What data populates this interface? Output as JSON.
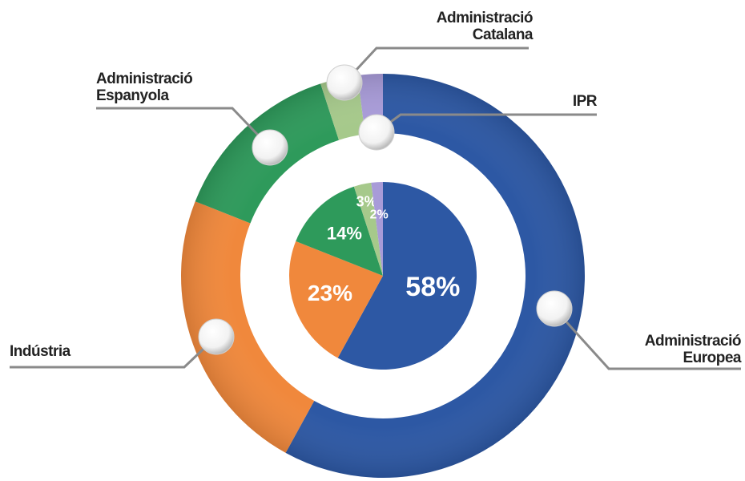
{
  "chart_data": {
    "type": "pie",
    "categories": [
      "Administració Europea",
      "Indústria",
      "Administració Espanyola",
      "Administració Catalana",
      "IPR"
    ],
    "values": [
      58,
      23,
      14,
      3,
      2
    ],
    "value_labels": [
      "58%",
      "23%",
      "14%",
      "3%",
      "2%"
    ],
    "colors": [
      "#2d58a4",
      "#f0883c",
      "#2e9a5b",
      "#a6c98b",
      "#a89bd8"
    ]
  }
}
